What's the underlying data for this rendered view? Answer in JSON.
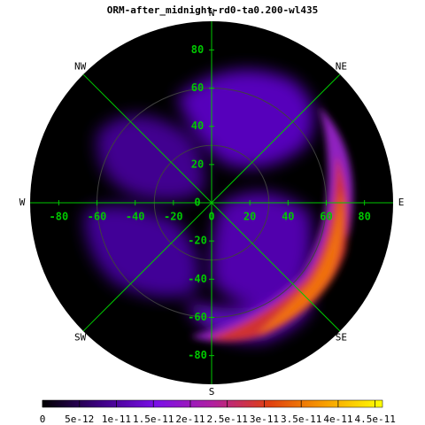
{
  "chart_data": {
    "type": "polar-heatmap",
    "title": "ORM-after_midnight-rd0-ta0.200-wl435",
    "rlim": 95,
    "xlim": [
      -95,
      95
    ],
    "ylim": [
      -95,
      95
    ],
    "xticks": [
      -80,
      -60,
      -40,
      -20,
      0,
      20,
      40,
      60,
      80
    ],
    "yticks": [
      80,
      60,
      40,
      20,
      0,
      -20,
      -40,
      -60,
      -80
    ],
    "rings": [
      30,
      60
    ],
    "grid_color": "#00c800",
    "ring_color": "#404040",
    "compass": [
      "N",
      "NE",
      "E",
      "SE",
      "S",
      "SW",
      "W",
      "NW"
    ],
    "colorbar": {
      "clim": [
        0,
        4.6e-11
      ],
      "ticks": [
        0,
        5e-12,
        1e-11,
        1.5e-11,
        2e-11,
        2.5e-11,
        3e-11,
        3.5e-11,
        4e-11,
        4.5e-11
      ],
      "colors": [
        "#000000",
        "#3c0080",
        "#7a10e8",
        "#b020a0",
        "#e04010",
        "#f8a000",
        "#ffff00"
      ]
    }
  }
}
